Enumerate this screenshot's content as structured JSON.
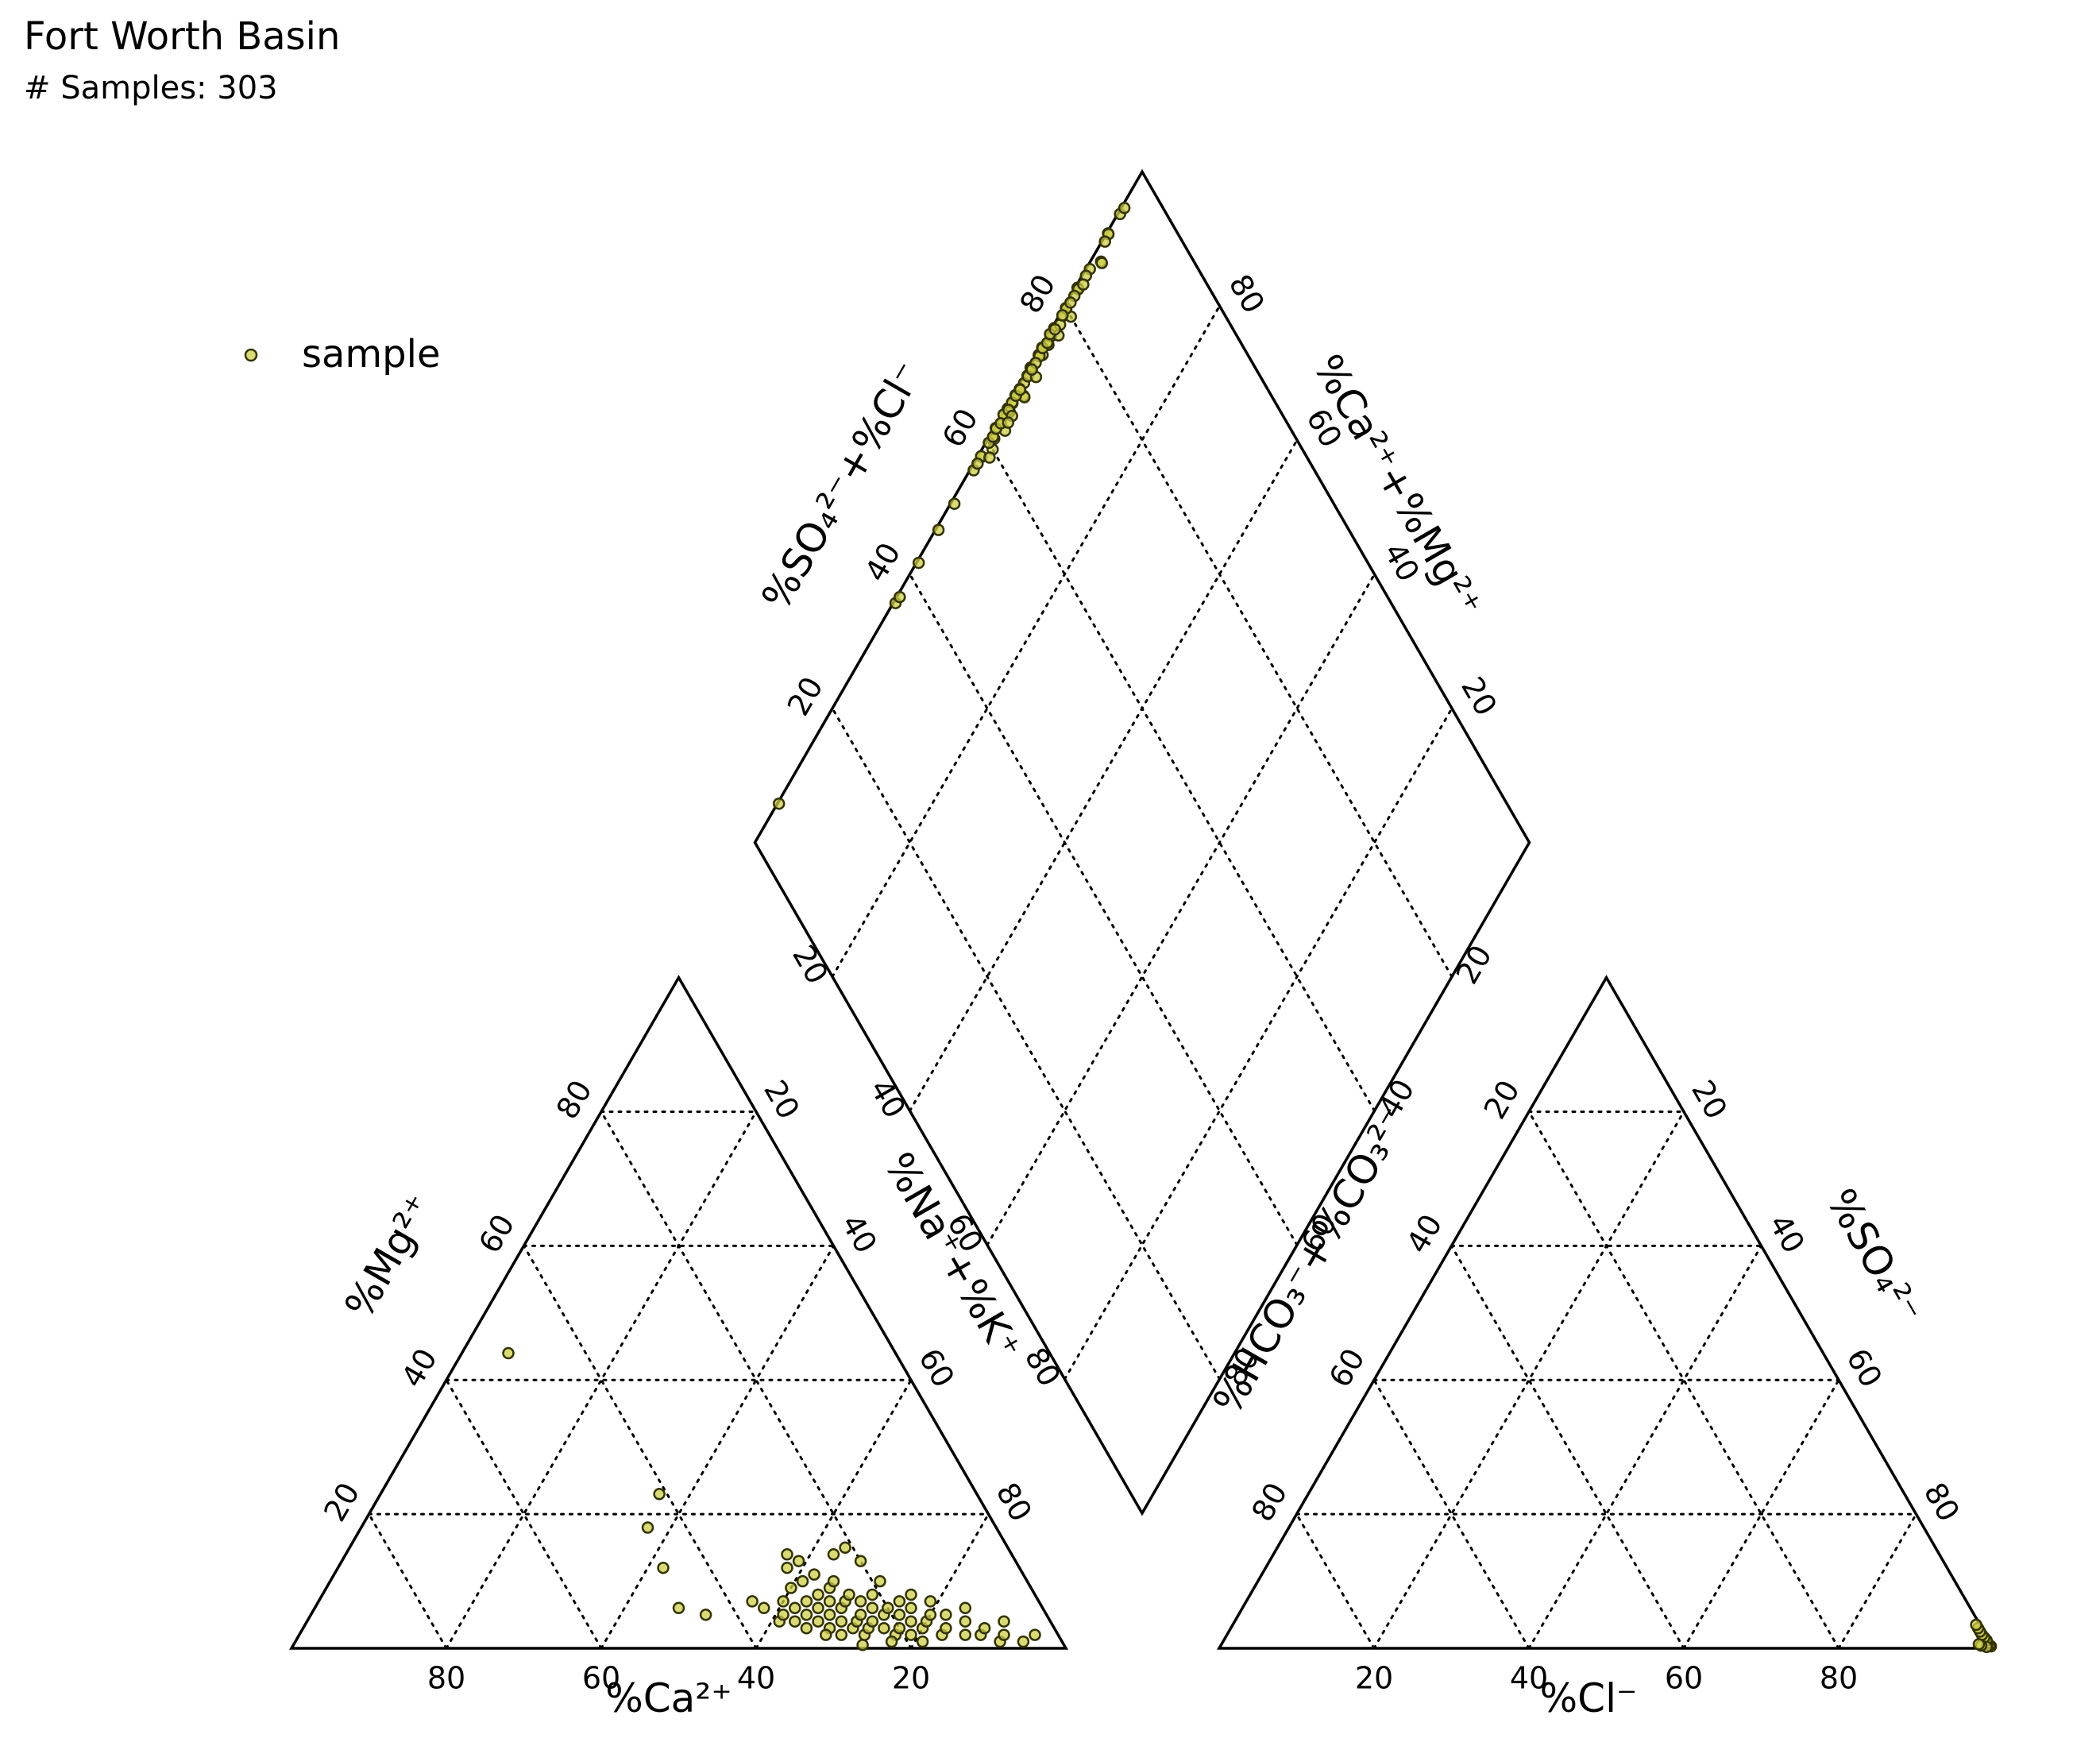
{
  "title": "Fort Worth Basin",
  "subtitle": "# Samples: 303",
  "legend": {
    "label": "sample"
  },
  "colors": {
    "point_fill": "#cdcd47",
    "point_edge": "#333300",
    "frame": "#000000",
    "grid": "#000000"
  },
  "chart_data": {
    "type": "scatter",
    "subtype": "piper_diagram",
    "grid": true,
    "legend_position": "top-left",
    "ticks": [
      "20",
      "40",
      "60",
      "80"
    ],
    "axes": {
      "cation_left": {
        "label": "%Mg²⁺"
      },
      "cation_bottom": {
        "label": "%Ca²⁺"
      },
      "cation_right": {
        "label": "%Na⁺+%K⁺"
      },
      "anion_left": {
        "label": "%HCO₃⁻+%CO₃²⁻"
      },
      "anion_bottom": {
        "label": "%Cl⁻"
      },
      "anion_right": {
        "label": "%SO₄²⁻"
      },
      "diamond_upper_left": {
        "label": "%SO₄²⁻+%Cl⁻"
      },
      "diamond_upper_right": {
        "label": "%Ca²⁺+%Mg²⁺"
      }
    },
    "series": [
      {
        "name": "sample",
        "cations": [
          {
            "ca": 50,
            "mg": 44
          },
          {
            "ca": 41,
            "mg": 23
          },
          {
            "ca": 45,
            "mg": 18
          },
          {
            "ca": 46,
            "mg": 12
          },
          {
            "ca": 47,
            "mg": 6
          },
          {
            "ca": 44,
            "mg": 5
          },
          {
            "ca": 37,
            "mg": 7
          },
          {
            "ca": 36,
            "mg": 6
          },
          {
            "ca": 35,
            "mg": 4
          },
          {
            "ca": 34,
            "mg": 5
          },
          {
            "ca": 33,
            "mg": 7
          },
          {
            "ca": 33,
            "mg": 4
          },
          {
            "ca": 32,
            "mg": 6
          },
          {
            "ca": 32,
            "mg": 3
          },
          {
            "ca": 31,
            "mg": 9
          },
          {
            "ca": 31,
            "mg": 5
          },
          {
            "ca": 30,
            "mg": 12
          },
          {
            "ca": 30,
            "mg": 7
          },
          {
            "ca": 30,
            "mg": 4
          },
          {
            "ca": 29,
            "mg": 14
          },
          {
            "ca": 29,
            "mg": 10
          },
          {
            "ca": 29,
            "mg": 6
          },
          {
            "ca": 29,
            "mg": 3
          },
          {
            "ca": 28,
            "mg": 13
          },
          {
            "ca": 28,
            "mg": 8
          },
          {
            "ca": 28,
            "mg": 5
          },
          {
            "ca": 28,
            "mg": 2
          },
          {
            "ca": 27,
            "mg": 11
          },
          {
            "ca": 27,
            "mg": 7
          },
          {
            "ca": 27,
            "mg": 4
          },
          {
            "ca": 26,
            "mg": 9
          },
          {
            "ca": 26,
            "mg": 6
          },
          {
            "ca": 26,
            "mg": 3
          },
          {
            "ca": 26,
            "mg": 0.5
          },
          {
            "ca": 25,
            "mg": 10
          },
          {
            "ca": 25,
            "mg": 7
          },
          {
            "ca": 25,
            "mg": 4
          },
          {
            "ca": 25,
            "mg": 2
          },
          {
            "ca": 24,
            "mg": 8
          },
          {
            "ca": 24,
            "mg": 5
          },
          {
            "ca": 24,
            "mg": 3
          },
          {
            "ca": 23,
            "mg": 14
          },
          {
            "ca": 23,
            "mg": 7
          },
          {
            "ca": 23,
            "mg": 4
          },
          {
            "ca": 22,
            "mg": 6
          },
          {
            "ca": 22,
            "mg": 3
          },
          {
            "ca": 21,
            "mg": 15
          },
          {
            "ca": 21,
            "mg": 8
          },
          {
            "ca": 21,
            "mg": 5
          },
          {
            "ca": 21,
            "mg": 2
          },
          {
            "ca": 20,
            "mg": 13
          },
          {
            "ca": 20,
            "mg": 6
          },
          {
            "ca": 20,
            "mg": 3
          },
          {
            "ca": 19,
            "mg": 10
          },
          {
            "ca": 19,
            "mg": 5
          },
          {
            "ca": 19,
            "mg": 2
          },
          {
            "ca": 18,
            "mg": 7
          },
          {
            "ca": 18,
            "mg": 4
          },
          {
            "ca": 17,
            "mg": 6
          },
          {
            "ca": 17,
            "mg": 3
          },
          {
            "ca": 16,
            "mg": 8
          },
          {
            "ca": 16,
            "mg": 4
          },
          {
            "ca": 15,
            "mg": 5
          },
          {
            "ca": 15,
            "mg": 2
          },
          {
            "ca": 14,
            "mg": 7
          },
          {
            "ca": 14,
            "mg": 3
          },
          {
            "ca": 13,
            "mg": 5
          },
          {
            "ca": 12,
            "mg": 2
          },
          {
            "ca": 11,
            "mg": 4
          },
          {
            "ca": 10,
            "mg": 6
          },
          {
            "ca": 10,
            "mg": 2
          },
          {
            "ca": 9,
            "mg": 3
          },
          {
            "ca": 8,
            "mg": 1
          },
          {
            "ca": 7,
            "mg": 2
          },
          {
            "ca": 6,
            "mg": 4
          },
          {
            "ca": 5,
            "mg": 1
          },
          {
            "ca": 3,
            "mg": 2
          },
          {
            "ca": 22,
            "mg": 1
          },
          {
            "ca": 18,
            "mg": 1
          },
          {
            "ca": 30,
            "mg": 2
          }
        ],
        "anions": [
          {
            "cl": 99.5,
            "so4": 0.3
          },
          {
            "cl": 99.2,
            "so4": 0.5
          },
          {
            "cl": 98.8,
            "so4": 0.8
          },
          {
            "cl": 98.5,
            "so4": 1.2
          },
          {
            "cl": 98.0,
            "so4": 1.6
          },
          {
            "cl": 97.5,
            "so4": 2.0
          },
          {
            "cl": 97.0,
            "so4": 2.5
          },
          {
            "cl": 96.5,
            "so4": 3.0
          },
          {
            "cl": 96.0,
            "so4": 3.5
          },
          {
            "cl": 99.0,
            "so4": 0.2
          },
          {
            "cl": 98.2,
            "so4": 0.4
          },
          {
            "cl": 97.8,
            "so4": 0.6
          }
        ]
      }
    ]
  }
}
